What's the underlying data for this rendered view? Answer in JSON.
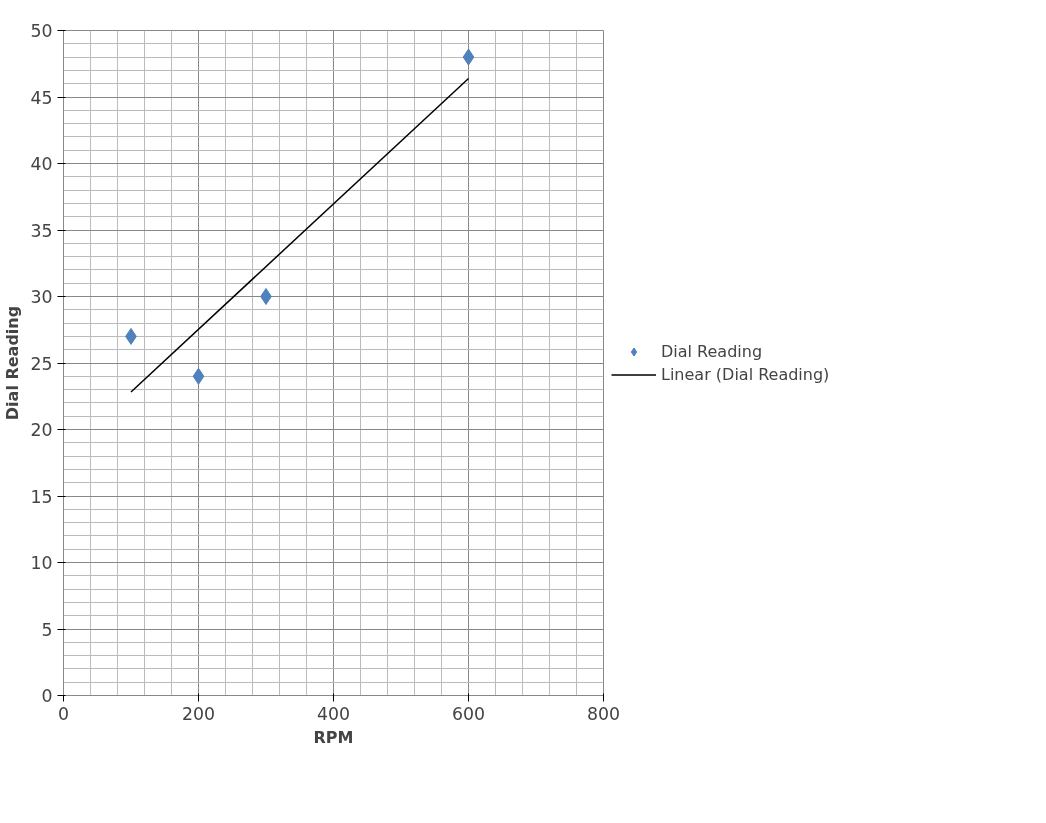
{
  "chart_data": {
    "type": "scatter",
    "xlabel": "RPM",
    "ylabel": "Dial Reading",
    "xlim": [
      0,
      800
    ],
    "ylim": [
      0,
      50
    ],
    "xticks": [
      0,
      200,
      400,
      600,
      800
    ],
    "yticks": [
      0,
      5,
      10,
      15,
      20,
      25,
      30,
      35,
      40,
      45,
      50
    ],
    "grid": true,
    "legend": "right",
    "marker": "diamond",
    "series": [
      {
        "name": "Dial Reading",
        "color": "#4f81bd",
        "x": [
          100,
          200,
          300,
          600
        ],
        "values": [
          27,
          24,
          30,
          48
        ]
      },
      {
        "name": "Linear (Dial Reading)",
        "type": "line",
        "marker": "none",
        "color": "#000000",
        "x": [
          100,
          600
        ],
        "values": [
          22.82,
          46.39
        ],
        "line_style": "solid"
      }
    ]
  }
}
